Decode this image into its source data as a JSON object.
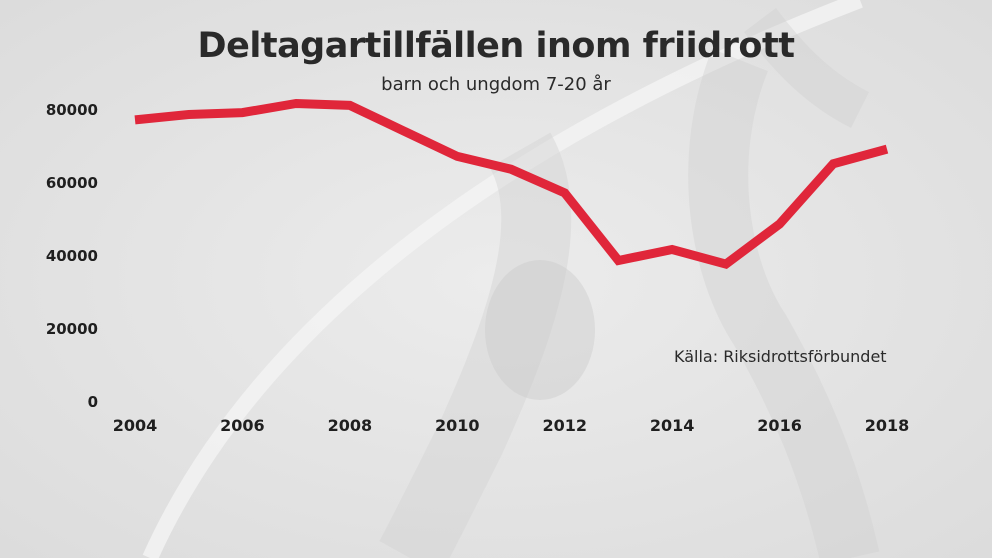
{
  "colors": {
    "line": "#e0263a",
    "text": "#1f1f1f",
    "background": "#e4e4e4"
  },
  "chart_data": {
    "type": "line",
    "title": "Deltagartillfällen inom friidrott",
    "subtitle": "barn och ungdom 7-20 år",
    "source": "Källa: Riksidrottsförbundet",
    "xlabel": "",
    "ylabel": "",
    "x": [
      2004,
      2005,
      2006,
      2007,
      2008,
      2009,
      2010,
      2011,
      2012,
      2013,
      2014,
      2015,
      2016,
      2017,
      2018
    ],
    "series": [
      {
        "values": [
          77000,
          78500,
          79000,
          81500,
          81000,
          74000,
          67000,
          63500,
          57000,
          38500,
          41500,
          37500,
          48500,
          65000,
          69000
        ]
      }
    ],
    "xticks": [
      "2004",
      "2006",
      "2008",
      "2010",
      "2012",
      "2014",
      "2016",
      "2018"
    ],
    "yticks": [
      "0",
      "20000",
      "40000",
      "60000",
      "80000"
    ],
    "xlim": [
      2004,
      2018
    ],
    "ylim": [
      0,
      80000
    ],
    "grid": false,
    "legend": "none"
  }
}
